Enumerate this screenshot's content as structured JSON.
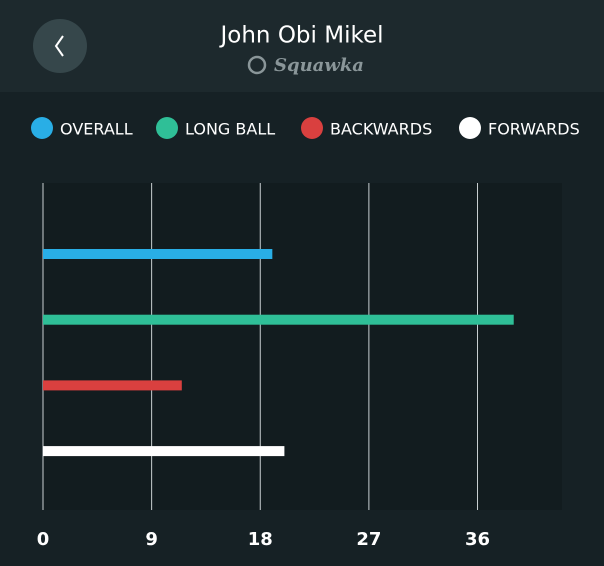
{
  "chart_data": {
    "type": "bar",
    "title": "John Obi Mikel",
    "subtitle": "Squawka",
    "series": [
      {
        "name": "OVERALL",
        "color": "#29aee6",
        "values": [
          19
        ]
      },
      {
        "name": "LONG BALL",
        "color": "#2fbf97",
        "values": [
          39
        ]
      },
      {
        "name": "BACKWARDS",
        "color": "#d9403f",
        "values": [
          11.5
        ]
      },
      {
        "name": "FORWARDS",
        "color": "#ffffff",
        "values": [
          20
        ]
      }
    ],
    "xlim": [
      0,
      43
    ],
    "xticks": [
      0,
      9,
      18,
      27,
      36
    ],
    "grid": true
  }
}
